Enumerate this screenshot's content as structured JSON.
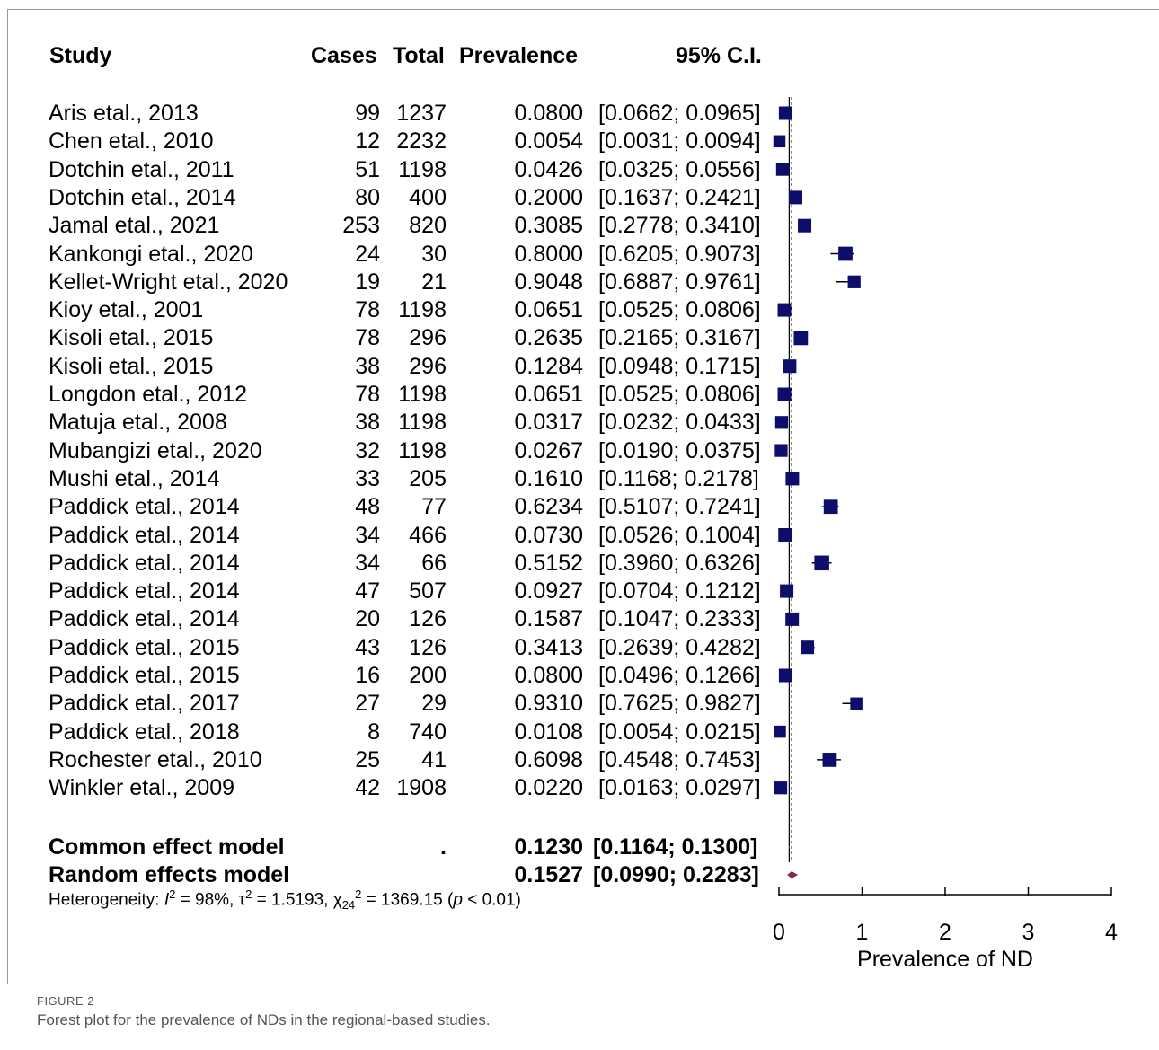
{
  "chart_data": {
    "type": "forest",
    "headers": {
      "study": "Study",
      "cases": "Cases",
      "total": "Total",
      "prevalence": "Prevalence",
      "ci": "95% C.I."
    },
    "studies": [
      {
        "study": "Aris etal., 2013",
        "cases": "99",
        "total": "1237",
        "prev": 0.08,
        "prev_text": "0.0800",
        "lo": 0.0662,
        "hi": 0.0965,
        "ci_text": "[0.0662; 0.0965]",
        "size": 1.0
      },
      {
        "study": "Chen etal., 2010",
        "cases": "12",
        "total": "2232",
        "prev": 0.0054,
        "prev_text": "0.0054",
        "lo": 0.0031,
        "hi": 0.0094,
        "ci_text": "[0.0031; 0.0094]",
        "size": 0.9
      },
      {
        "study": "Dotchin etal., 2011",
        "cases": "51",
        "total": "1198",
        "prev": 0.0426,
        "prev_text": "0.0426",
        "lo": 0.0325,
        "hi": 0.0556,
        "ci_text": "[0.0325; 0.0556]",
        "size": 0.95
      },
      {
        "study": "Dotchin etal., 2014",
        "cases": "80",
        "total": "400",
        "prev": 0.2,
        "prev_text": "0.2000",
        "lo": 0.1637,
        "hi": 0.2421,
        "ci_text": "[0.1637; 0.2421]",
        "size": 1.0
      },
      {
        "study": "Jamal etal., 2021",
        "cases": "253",
        "total": "820",
        "prev": 0.3085,
        "prev_text": "0.3085",
        "lo": 0.2778,
        "hi": 0.341,
        "ci_text": "[0.2778; 0.3410]",
        "size": 1.0
      },
      {
        "study": "Kankongi etal., 2020",
        "cases": "24",
        "total": "30",
        "prev": 0.8,
        "prev_text": "0.8000",
        "lo": 0.6205,
        "hi": 0.9073,
        "ci_text": "[0.6205; 0.9073]",
        "size": 1.05
      },
      {
        "study": "Kellet-Wright etal., 2020",
        "cases": "19",
        "total": "21",
        "prev": 0.9048,
        "prev_text": "0.9048",
        "lo": 0.6887,
        "hi": 0.9761,
        "ci_text": "[0.6887; 0.9761]",
        "size": 0.95
      },
      {
        "study": "Kioy etal., 2001",
        "cases": "78",
        "total": "1198",
        "prev": 0.0651,
        "prev_text": "0.0651",
        "lo": 0.0525,
        "hi": 0.0806,
        "ci_text": "[0.0525; 0.0806]",
        "size": 1.0
      },
      {
        "study": "Kisoli  etal., 2015",
        "cases": "78",
        "total": "296",
        "prev": 0.2635,
        "prev_text": "0.2635",
        "lo": 0.2165,
        "hi": 0.3167,
        "ci_text": "[0.2165; 0.3167]",
        "size": 1.05
      },
      {
        "study": "Kisoli  etal., 2015",
        "cases": "38",
        "total": "296",
        "prev": 0.1284,
        "prev_text": "0.1284",
        "lo": 0.0948,
        "hi": 0.1715,
        "ci_text": "[0.0948; 0.1715]",
        "size": 1.0
      },
      {
        "study": "Longdon etal., 2012",
        "cases": "78",
        "total": "1198",
        "prev": 0.0651,
        "prev_text": "0.0651",
        "lo": 0.0525,
        "hi": 0.0806,
        "ci_text": "[0.0525; 0.0806]",
        "size": 1.0
      },
      {
        "study": "Matuja etal., 2008",
        "cases": "38",
        "total": "1198",
        "prev": 0.0317,
        "prev_text": "0.0317",
        "lo": 0.0232,
        "hi": 0.0433,
        "ci_text": "[0.0232; 0.0433]",
        "size": 0.95
      },
      {
        "study": "Mubangizi etal., 2020",
        "cases": "32",
        "total": "1198",
        "prev": 0.0267,
        "prev_text": "0.0267",
        "lo": 0.019,
        "hi": 0.0375,
        "ci_text": "[0.0190; 0.0375]",
        "size": 0.95
      },
      {
        "study": "Mushi etal., 2014",
        "cases": "33",
        "total": "205",
        "prev": 0.161,
        "prev_text": "0.1610",
        "lo": 0.1168,
        "hi": 0.2178,
        "ci_text": "[0.1168; 0.2178]",
        "size": 1.0
      },
      {
        "study": "Paddick etal., 2014",
        "cases": "48",
        "total": "77",
        "prev": 0.6234,
        "prev_text": "0.6234",
        "lo": 0.5107,
        "hi": 0.7241,
        "ci_text": "[0.5107; 0.7241]",
        "size": 1.05
      },
      {
        "study": "Paddick etal., 2014",
        "cases": "34",
        "total": "466",
        "prev": 0.073,
        "prev_text": "0.0730",
        "lo": 0.0526,
        "hi": 0.1004,
        "ci_text": "[0.0526; 0.1004]",
        "size": 1.0
      },
      {
        "study": "Paddick etal., 2014",
        "cases": "34",
        "total": "66",
        "prev": 0.5152,
        "prev_text": "0.5152",
        "lo": 0.396,
        "hi": 0.6326,
        "ci_text": "[0.3960; 0.6326]",
        "size": 1.1
      },
      {
        "study": "Paddick etal., 2014",
        "cases": "47",
        "total": "507",
        "prev": 0.0927,
        "prev_text": "0.0927",
        "lo": 0.0704,
        "hi": 0.1212,
        "ci_text": "[0.0704; 0.1212]",
        "size": 1.0
      },
      {
        "study": "Paddick etal., 2014",
        "cases": "20",
        "total": "126",
        "prev": 0.1587,
        "prev_text": "0.1587",
        "lo": 0.1047,
        "hi": 0.2333,
        "ci_text": "[0.1047; 0.2333]",
        "size": 1.0
      },
      {
        "study": "Paddick etal., 2015",
        "cases": "43",
        "total": "126",
        "prev": 0.3413,
        "prev_text": "0.3413",
        "lo": 0.2639,
        "hi": 0.4282,
        "ci_text": "[0.2639; 0.4282]",
        "size": 1.0
      },
      {
        "study": "Paddick etal., 2015",
        "cases": "16",
        "total": "200",
        "prev": 0.08,
        "prev_text": "0.0800",
        "lo": 0.0496,
        "hi": 0.1266,
        "ci_text": "[0.0496; 0.1266]",
        "size": 1.0
      },
      {
        "study": "Paddick etal., 2017",
        "cases": "27",
        "total": "29",
        "prev": 0.931,
        "prev_text": "0.9310",
        "lo": 0.7625,
        "hi": 0.9827,
        "ci_text": "[0.7625; 0.9827]",
        "size": 0.9
      },
      {
        "study": "Paddick etal., 2018",
        "cases": "8",
        "total": "740",
        "prev": 0.0108,
        "prev_text": "0.0108",
        "lo": 0.0054,
        "hi": 0.0215,
        "ci_text": "[0.0054; 0.0215]",
        "size": 0.9
      },
      {
        "study": "Rochester etal., 2010",
        "cases": "25",
        "total": "41",
        "prev": 0.6098,
        "prev_text": "0.6098",
        "lo": 0.4548,
        "hi": 0.7453,
        "ci_text": "[0.4548; 0.7453]",
        "size": 1.05
      },
      {
        "study": "Winkler etal., 2009",
        "cases": "42",
        "total": "1908",
        "prev": 0.022,
        "prev_text": "0.0220",
        "lo": 0.0163,
        "hi": 0.0297,
        "ci_text": "[0.0163; 0.0297]",
        "size": 0.95
      }
    ],
    "summary": [
      {
        "label": "Common effect model",
        "cases": ".",
        "prev": 0.123,
        "prev_text": "0.1230",
        "lo": 0.1164,
        "hi": 0.13,
        "ci_text": "[0.1164; 0.1300]"
      },
      {
        "label": "Random effects model",
        "cases": "",
        "prev": 0.1527,
        "prev_text": "0.1527",
        "lo": 0.099,
        "hi": 0.2283,
        "ci_text": "[0.0990; 0.2283]"
      }
    ],
    "heterogeneity": {
      "prefix": "Heterogeneity: ",
      "i2_symbol": "I",
      "i2_sup": "2",
      "i2_value": " = 98%, ",
      "tau_symbol": "τ",
      "tau_sup": "2",
      "tau_value": " = 1.5193, ",
      "chi_symbol": "χ",
      "chi_sup": "2",
      "chi_sub": "24",
      "chi_value": " = 1369.15 (",
      "p_symbol": "p",
      "p_value": " < 0.01)"
    },
    "x_axis": {
      "label": "Prevalence of ND",
      "ticks": [
        0,
        1,
        2,
        3,
        4
      ],
      "range": [
        0,
        4
      ]
    },
    "reference_line": 0.1527,
    "colors": {
      "square": "#0d0d6b",
      "diamond": "#7b2f4a",
      "line": "#000000"
    }
  },
  "caption": {
    "label": "FIGURE 2",
    "text": "Forest plot for the prevalence of NDs in the regional-based studies."
  }
}
